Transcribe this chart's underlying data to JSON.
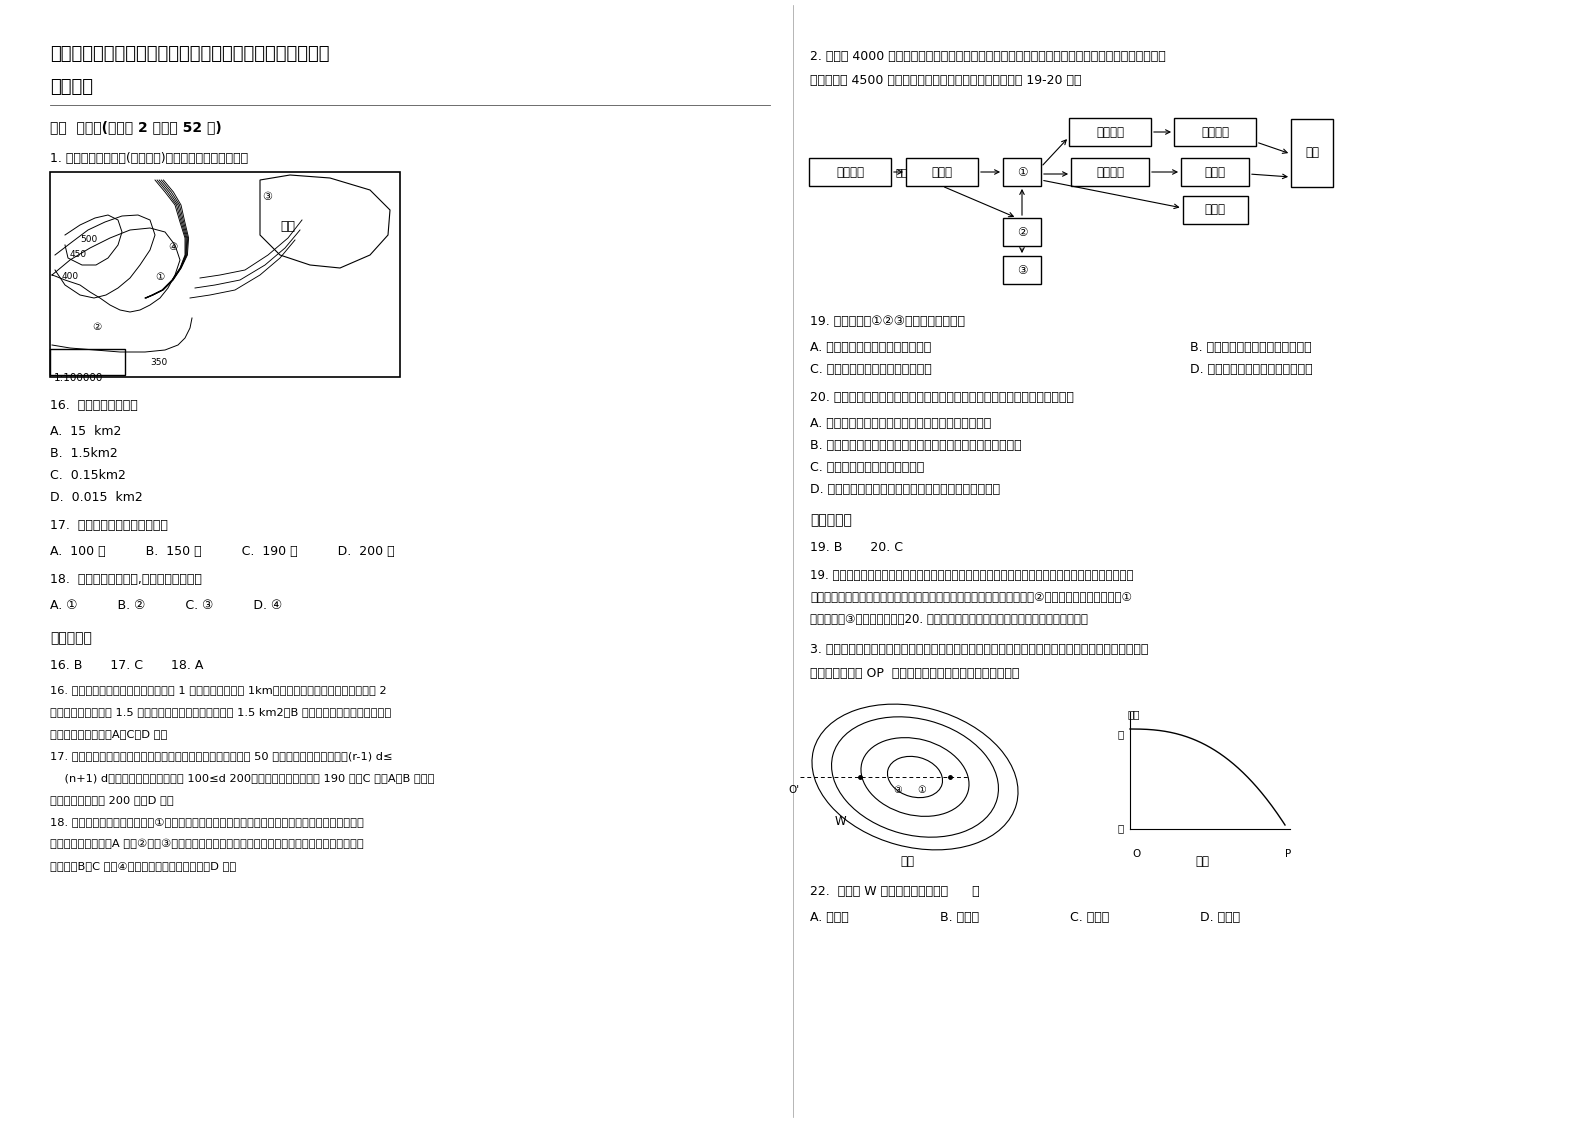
{
  "title_line1": "北京铁路分局铁路职工子弟第三中学高二地理下学期期末试",
  "title_line2": "题含解析",
  "section1": "一、  选择题(每小题 2 分，共 52 分)",
  "q1_intro": "1. 下图为某地等高线(单位：米)图。读图回答下面小题。",
  "scale": "1:100000",
  "q16": "16.  图中水域面积约为",
  "q16a": "A.  15  km2",
  "q16b": "B.  1.5km2",
  "q16c": "C.  0.15km2",
  "q16d": "D.  0.015  km2",
  "q17": "17.  图中陡崖的最大高差可能是",
  "q17abcd": "A.  100 米          B.  150 米          C.  190 米          D.  200 米",
  "q18": "18.  若要安排露营活动,最不适宜的地点是",
  "q18abcd": "A. ①          B. ②          C. ③          D. ④",
  "ref_ans": "参考答案：",
  "ans_16_18": "16. B       17. C       18. A",
  "ans16_text1": "16. 读图，根据图中比例尺可知，图上 1 厘米代表实际距离 1km，图中水域似三角形，右侧边长约 2",
  "ans16_text2": "厘米，该边上的高约 1.5 厘米，计算三角形的面积，约为 1.5 km2，B 对。其它三个数值差距太大，",
  "ans16_text3": "不能有这么大误差。A、C、D 错。",
  "ans17_text1": "17. 读图，陡崖处有三条等高线相交，图中等高距可以判断等距 50 米，根据陡崖高差公式，(r-1) d≤",
  "ans17_text2": "    (n+1) d，可以计算出高差范围是 100≤d 200，所以最大高差可能是 190 米，C 对。A、B 数值太",
  "ans17_text3": "小。高差不能等于 200 米，D 错。",
  "ans18_text1": "18. 根据图中等高线凸出方向，①处是山谷，是集水线，等高线密集，容易发生洪水灾害或滑坡等灾",
  "ans18_text2": "害，最不适宜露营，A 对；②处、③处位于山脊处，等高线稀疏，坡度平缓，发生灾害可能性小，适",
  "ans18_text3": "宜露营，B、C 错。④处位于山顶上，也较适宜，D 错。",
  "q2_intro1": "2. 大约在 4000 万年前，青藏高原开始从海底隆升。经过漫长而缓慢地抬升，现在，青藏高原的平均",
  "q2_intro2": "海拔已超过 4500 米，形成了独特的自然景观。读图，回答 19-20 题。",
  "q19": "19. 图中方框内①②③对应的内容分别是",
  "q19a": "A. 太阳辐射强、气温低、空气稀薄",
  "q19b": "B. 气温低、空气稀薄、太阳辐射强",
  "q19c": "C. 气温低、太阳辐射强、空气稀薄",
  "q19d": "D. 空气稀薄、太阳辐射强、气温低",
  "q20": "20. 从地理环境整体性的角度分析，下列现象与青藏高原地理环境不相符的是",
  "q20a": "A. 地壳隆升，海拔不断升高，气候逐渐变得寒冷干燥",
  "q20b": "B. 高山终年积雪，冰川广布，丰富的冰雪融水为河流提供水源",
  "q20c": "C. 土壤贫瘠，多冻土，土层浅薄",
  "q20d": "D. 植被为高山草甸草原，动物以能抵御寒冷的牦牛为主",
  "ref_ans2": "参考答案：",
  "ans_19_20": "19. B       20. C",
  "ans19_text1": "19. 青藏高原地区海拔高直接导致该地气温低、空气稀薄。空气稀薄即空气中水分、杂质的含量小，对",
  "ans19_text2": "太阳辐射的削弱作用小，因此，白天该地的太阳辐射较强。由此可推断出②对应的内容为空气稀薄，①",
  "ans19_text3": "为气温低，③为太阳辐射强。20. 青藏高原生态系统较为脆弱，土层浅薄，土壤贫瘠。",
  "q3_intro1": "3. 图甲实线为中纬度某地区近地面等压线分布示意图，且图示天气系统气流沿逆时针方向流动，图乙",
  "q3_intro2": "示意图甲中虚线 OP  一线气压变化情况。据此完成下列题。",
  "q22": "22.  图甲中 W 地的风向最可能是（      ）",
  "q22a": "A. 西北风",
  "q22b": "B. 西南风",
  "q22c": "C. 东南风",
  "q22d": "D. 东北风",
  "background": "#ffffff",
  "text_color": "#000000"
}
